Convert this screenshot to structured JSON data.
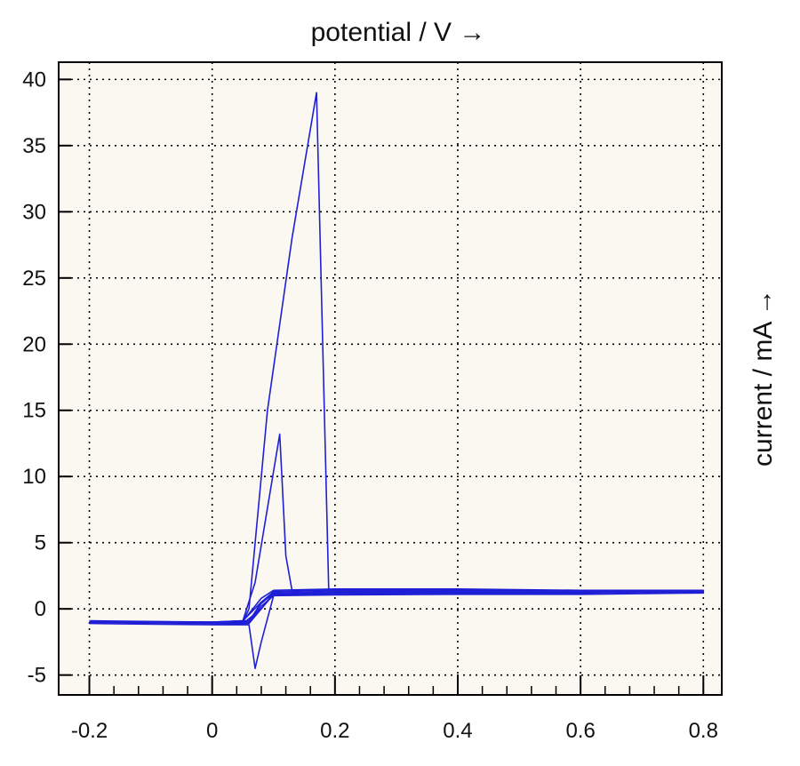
{
  "chart_data": {
    "type": "line",
    "title": "",
    "xlabel": "potential / V →",
    "ylabel": "current / mA →",
    "xlim": [
      -0.25,
      0.83
    ],
    "ylim": [
      -6.5,
      41.3
    ],
    "xticks": [
      -0.2,
      0,
      0.2,
      0.4,
      0.6,
      0.8
    ],
    "xtick_labels": [
      "-0.2",
      "0",
      "0.2",
      "0.4",
      "0.6",
      "0.8"
    ],
    "yticks": [
      -5,
      0,
      5,
      10,
      15,
      20,
      25,
      30,
      35,
      40
    ],
    "ytick_labels": [
      "-5",
      "0",
      "5",
      "10",
      "15",
      "20",
      "25",
      "30",
      "35",
      "40"
    ],
    "grid": true,
    "background": "#faf8f1",
    "line_color": "#1f1fd6",
    "series": [
      {
        "x": [
          -0.2,
          0.0,
          0.05,
          0.06,
          0.09,
          0.13,
          0.17,
          0.19,
          0.21,
          0.4,
          0.6,
          0.8,
          0.6,
          0.4,
          0.2,
          0.1,
          0.08,
          0.06,
          0.0,
          -0.2
        ],
        "y": [
          -1.0,
          -1.1,
          -1.0,
          0.0,
          15.0,
          28.0,
          39.0,
          1.2,
          1.3,
          1.3,
          1.3,
          1.35,
          1.2,
          1.2,
          1.15,
          1.1,
          0.0,
          -1.1,
          -1.1,
          -1.0
        ]
      },
      {
        "x": [
          -0.2,
          0.0,
          0.05,
          0.07,
          0.11,
          0.12,
          0.13,
          0.2,
          0.4,
          0.6,
          0.8,
          0.6,
          0.4,
          0.2,
          0.1,
          0.08,
          0.06,
          0.0,
          -0.2
        ],
        "y": [
          -0.9,
          -1.0,
          -0.9,
          2.0,
          13.2,
          4.0,
          1.4,
          1.4,
          1.4,
          1.4,
          1.35,
          1.2,
          1.2,
          1.2,
          1.2,
          0.5,
          -1.0,
          -1.0,
          -0.9
        ]
      },
      {
        "x": [
          -0.2,
          0.0,
          0.05,
          0.08,
          0.1,
          0.2,
          0.4,
          0.6,
          0.8,
          0.6,
          0.4,
          0.2,
          0.1,
          0.08,
          0.07,
          0.06,
          0.0,
          -0.2
        ],
        "y": [
          -1.1,
          -1.2,
          -1.1,
          0.0,
          1.2,
          1.3,
          1.4,
          1.3,
          1.3,
          1.25,
          1.2,
          1.2,
          1.0,
          -2.5,
          -4.5,
          -1.2,
          -1.2,
          -1.1
        ]
      },
      {
        "x": [
          -0.2,
          0.0,
          0.05,
          0.08,
          0.1,
          0.2,
          0.4,
          0.6,
          0.8,
          0.6,
          0.4,
          0.2,
          0.1,
          0.08,
          0.06,
          0.0,
          -0.2
        ],
        "y": [
          -1.0,
          -1.0,
          -0.9,
          0.5,
          1.3,
          1.4,
          1.4,
          1.3,
          1.2,
          1.1,
          1.1,
          1.05,
          1.0,
          0.2,
          -1.0,
          -1.05,
          -1.0
        ]
      },
      {
        "x": [
          -0.2,
          0.0,
          0.05,
          0.08,
          0.1,
          0.2,
          0.4,
          0.6,
          0.8,
          0.6,
          0.4,
          0.2,
          0.1,
          0.08,
          0.06,
          0.0,
          -0.2
        ],
        "y": [
          -0.95,
          -1.05,
          -0.95,
          0.8,
          1.4,
          1.5,
          1.5,
          1.4,
          1.4,
          1.3,
          1.25,
          1.2,
          1.2,
          0.4,
          -0.9,
          -1.0,
          -0.95
        ]
      }
    ]
  }
}
